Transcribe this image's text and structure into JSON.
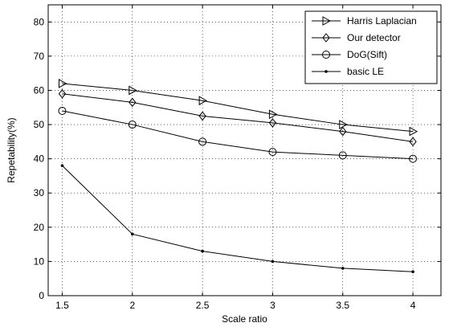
{
  "chart_data": {
    "type": "line",
    "xlabel": "Scale ratio",
    "ylabel": "Repetability(%)",
    "x": [
      1.5,
      2,
      2.5,
      3,
      3.5,
      4
    ],
    "xlim": [
      1.4,
      4.2
    ],
    "ylim": [
      0,
      85
    ],
    "xticks": [
      "1.5",
      "2",
      "2.5",
      "3",
      "3.5",
      "4"
    ],
    "yticks": [
      "0",
      "10",
      "20",
      "30",
      "40",
      "50",
      "60",
      "70",
      "80"
    ],
    "grid": true,
    "legend_position": "top-right",
    "series": [
      {
        "name": "Harris Laplacian",
        "marker": "triangle-right",
        "values": [
          62,
          60,
          57,
          53,
          50,
          48
        ]
      },
      {
        "name": "Our detector",
        "marker": "diamond",
        "values": [
          59,
          56.5,
          52.5,
          50.5,
          48,
          45
        ]
      },
      {
        "name": "DoG(Sift)",
        "marker": "circle",
        "values": [
          54,
          50,
          45,
          42,
          41,
          40
        ]
      },
      {
        "name": "basic LE",
        "marker": "dot",
        "values": [
          38,
          18,
          13,
          10,
          8,
          7
        ]
      }
    ]
  }
}
